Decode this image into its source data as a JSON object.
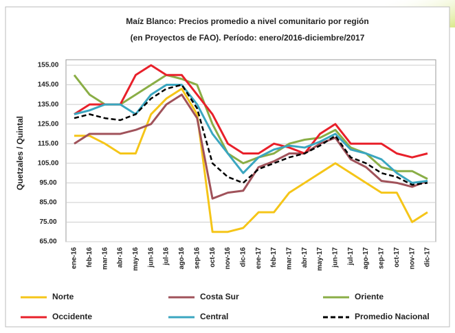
{
  "chart_data": {
    "type": "line",
    "title": [
      "Maíz Blanco: Precios promedio a nivel comunitario por región",
      "(en Proyectos de FAO). Período: enero/2016-diciembre/2017"
    ],
    "y_label": "Quetzales / Quintal",
    "categories": [
      "ene-16",
      "feb-16",
      "mar-16",
      "abr-16",
      "may-16",
      "jun-16",
      "jul-16",
      "ago-16",
      "sep-16",
      "oct-16",
      "nov-16",
      "dic-16",
      "ene-17",
      "feb-17",
      "mar-17",
      "abr-17",
      "may-17",
      "jun-17",
      "jul-17",
      "ago-17",
      "sep-17",
      "oct-17",
      "nov-17",
      "dic-17"
    ],
    "series": [
      {
        "name": "Norte",
        "color": "#f5c518",
        "values": [
          119,
          119,
          115,
          110,
          110,
          130,
          138,
          143,
          130,
          70,
          70,
          72,
          80,
          80,
          90,
          95,
          100,
          105,
          100,
          95,
          90,
          90,
          75,
          80
        ]
      },
      {
        "name": "Costa Sur",
        "color": "#a0525a",
        "values": [
          115,
          120,
          120,
          120,
          122,
          125,
          135,
          140,
          128,
          87,
          90,
          91,
          103,
          106,
          110,
          110,
          115,
          118,
          107,
          103,
          96,
          95,
          93,
          96
        ]
      },
      {
        "name": "Oriente",
        "color": "#8aae46",
        "values": [
          150,
          140,
          135,
          135,
          140,
          145,
          150,
          148,
          145,
          125,
          110,
          105,
          108,
          110,
          115,
          117,
          118,
          122,
          113,
          110,
          103,
          101,
          101,
          97
        ]
      },
      {
        "name": "Occidente",
        "color": "#e8202a",
        "values": [
          130,
          135,
          135,
          135,
          150,
          155,
          150,
          150,
          140,
          130,
          115,
          110,
          110,
          115,
          113,
          110,
          120,
          125,
          115,
          115,
          115,
          110,
          108,
          110
        ]
      },
      {
        "name": "Central",
        "color": "#3aa6c0",
        "values": [
          130,
          132,
          135,
          135,
          130,
          140,
          145,
          145,
          135,
          120,
          110,
          100,
          108,
          112,
          114,
          113,
          116,
          120,
          112,
          110,
          107,
          100,
          95,
          96
        ]
      },
      {
        "name": "Promedio Nacional",
        "color": "#000000",
        "dashed": true,
        "values": [
          128,
          130,
          128,
          127,
          130,
          138,
          143,
          145,
          133,
          105,
          98,
          95,
          102,
          105,
          108,
          110,
          114,
          119,
          108,
          105,
          100,
          98,
          94,
          95
        ]
      }
    ],
    "ylim": [
      65,
      155
    ],
    "yticks": [
      {
        "value": 65,
        "label": "65.00"
      },
      {
        "value": 75,
        "label": "75.00"
      },
      {
        "value": 85,
        "label": "85.00"
      },
      {
        "value": 95,
        "label": "95.00"
      },
      {
        "value": 105,
        "label": "105.00"
      },
      {
        "value": 115,
        "label": "115.00"
      },
      {
        "value": 125,
        "label": "125.00"
      },
      {
        "value": 135,
        "label": "135.00"
      },
      {
        "value": 145,
        "label": "145.00"
      },
      {
        "value": 155,
        "label": "155.00"
      }
    ],
    "grid": true,
    "legend": "bottom"
  }
}
